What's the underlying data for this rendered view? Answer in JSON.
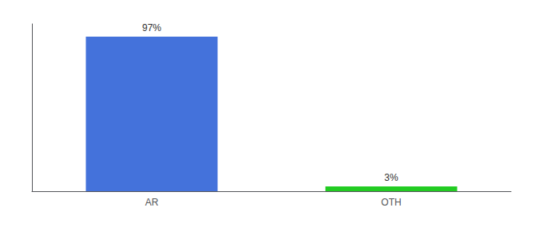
{
  "chart_data": {
    "type": "bar",
    "categories": [
      "AR",
      "OTH"
    ],
    "values": [
      97,
      3
    ],
    "colors": [
      "#4472db",
      "#22cc22"
    ],
    "data_labels": true,
    "value_labels": [
      "97%",
      "3%"
    ],
    "ylim": [
      0,
      105
    ],
    "yticks": [],
    "tick_labels": "x",
    "grid": false
  }
}
